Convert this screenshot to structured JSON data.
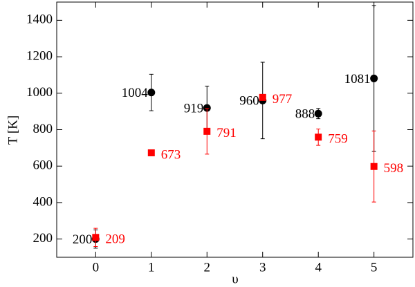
{
  "chart_data": {
    "type": "scatter",
    "x_label": "υ",
    "y_label": "T [K]",
    "xlim": [
      -0.7,
      5.7
    ],
    "ylim": [
      100,
      1500
    ],
    "xticks": [
      0,
      1,
      2,
      3,
      4,
      5
    ],
    "yticks": [
      200,
      400,
      600,
      800,
      1000,
      1200,
      1400
    ],
    "series": [
      {
        "color": "#000000",
        "marker": "circle",
        "label_side": "left",
        "x": [
          0,
          1,
          2,
          3,
          4,
          5
        ],
        "values": [
          200,
          1004,
          919,
          960,
          888,
          1081
        ],
        "errors": [
          50,
          100,
          120,
          210,
          28,
          400
        ]
      },
      {
        "color": "#ff0000",
        "marker": "square",
        "label_side": "right",
        "x": [
          0,
          1,
          2,
          3,
          4,
          5
        ],
        "values": [
          209,
          673,
          791,
          977,
          759,
          598
        ],
        "errors": [
          50,
          0,
          125,
          0,
          45,
          195
        ]
      }
    ]
  }
}
